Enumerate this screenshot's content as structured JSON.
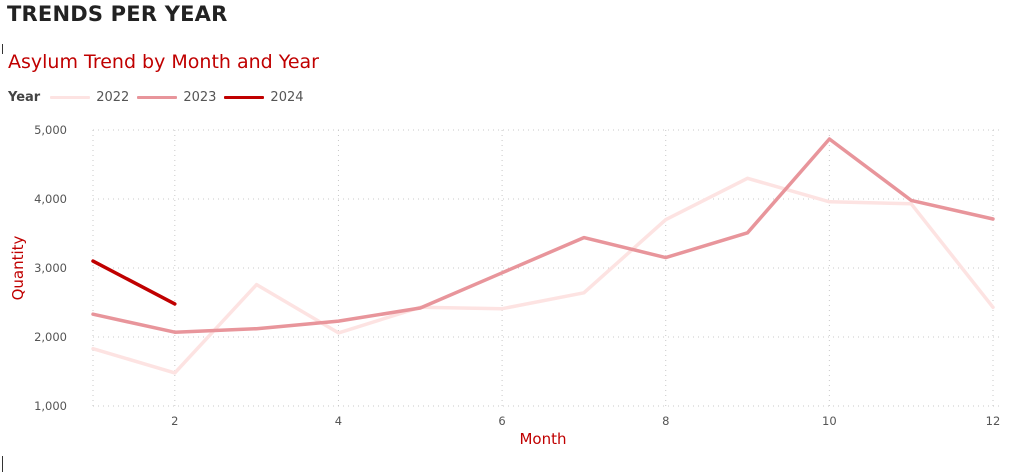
{
  "page": {
    "title": "TRENDS PER YEAR"
  },
  "chart_data": {
    "type": "line",
    "title": "Asylum Trend by Month and Year",
    "legend_title": "Year",
    "legend_position": "top-left",
    "xlabel": "Month",
    "ylabel": "Quantity",
    "xlim": [
      1,
      12
    ],
    "ylim": [
      1000,
      5000
    ],
    "x_ticks": [
      2,
      4,
      6,
      8,
      10,
      12
    ],
    "x_tick_labels": [
      "2",
      "4",
      "6",
      "8",
      "10",
      "12"
    ],
    "y_ticks": [
      1000,
      2000,
      3000,
      4000,
      5000
    ],
    "y_tick_labels": [
      "1,000",
      "2,000",
      "3,000",
      "4,000",
      "5,000"
    ],
    "grid": "dotted",
    "series": [
      {
        "name": "2022",
        "color": "#fde3e2",
        "x": [
          1,
          2,
          3,
          4,
          5,
          6,
          7,
          8,
          9,
          10,
          11,
          12
        ],
        "values": [
          1830,
          1480,
          2760,
          2060,
          2430,
          2410,
          2640,
          3700,
          4300,
          3960,
          3930,
          2430
        ]
      },
      {
        "name": "2023",
        "color": "#e8959b",
        "x": [
          1,
          2,
          3,
          4,
          5,
          6,
          7,
          8,
          9,
          10,
          11,
          12
        ],
        "values": [
          2330,
          2070,
          2120,
          2230,
          2420,
          2930,
          3440,
          3150,
          3510,
          4870,
          3980,
          3710
        ]
      },
      {
        "name": "2024",
        "color": "#c00000",
        "x": [
          1,
          2
        ],
        "values": [
          3100,
          2480
        ]
      }
    ]
  }
}
